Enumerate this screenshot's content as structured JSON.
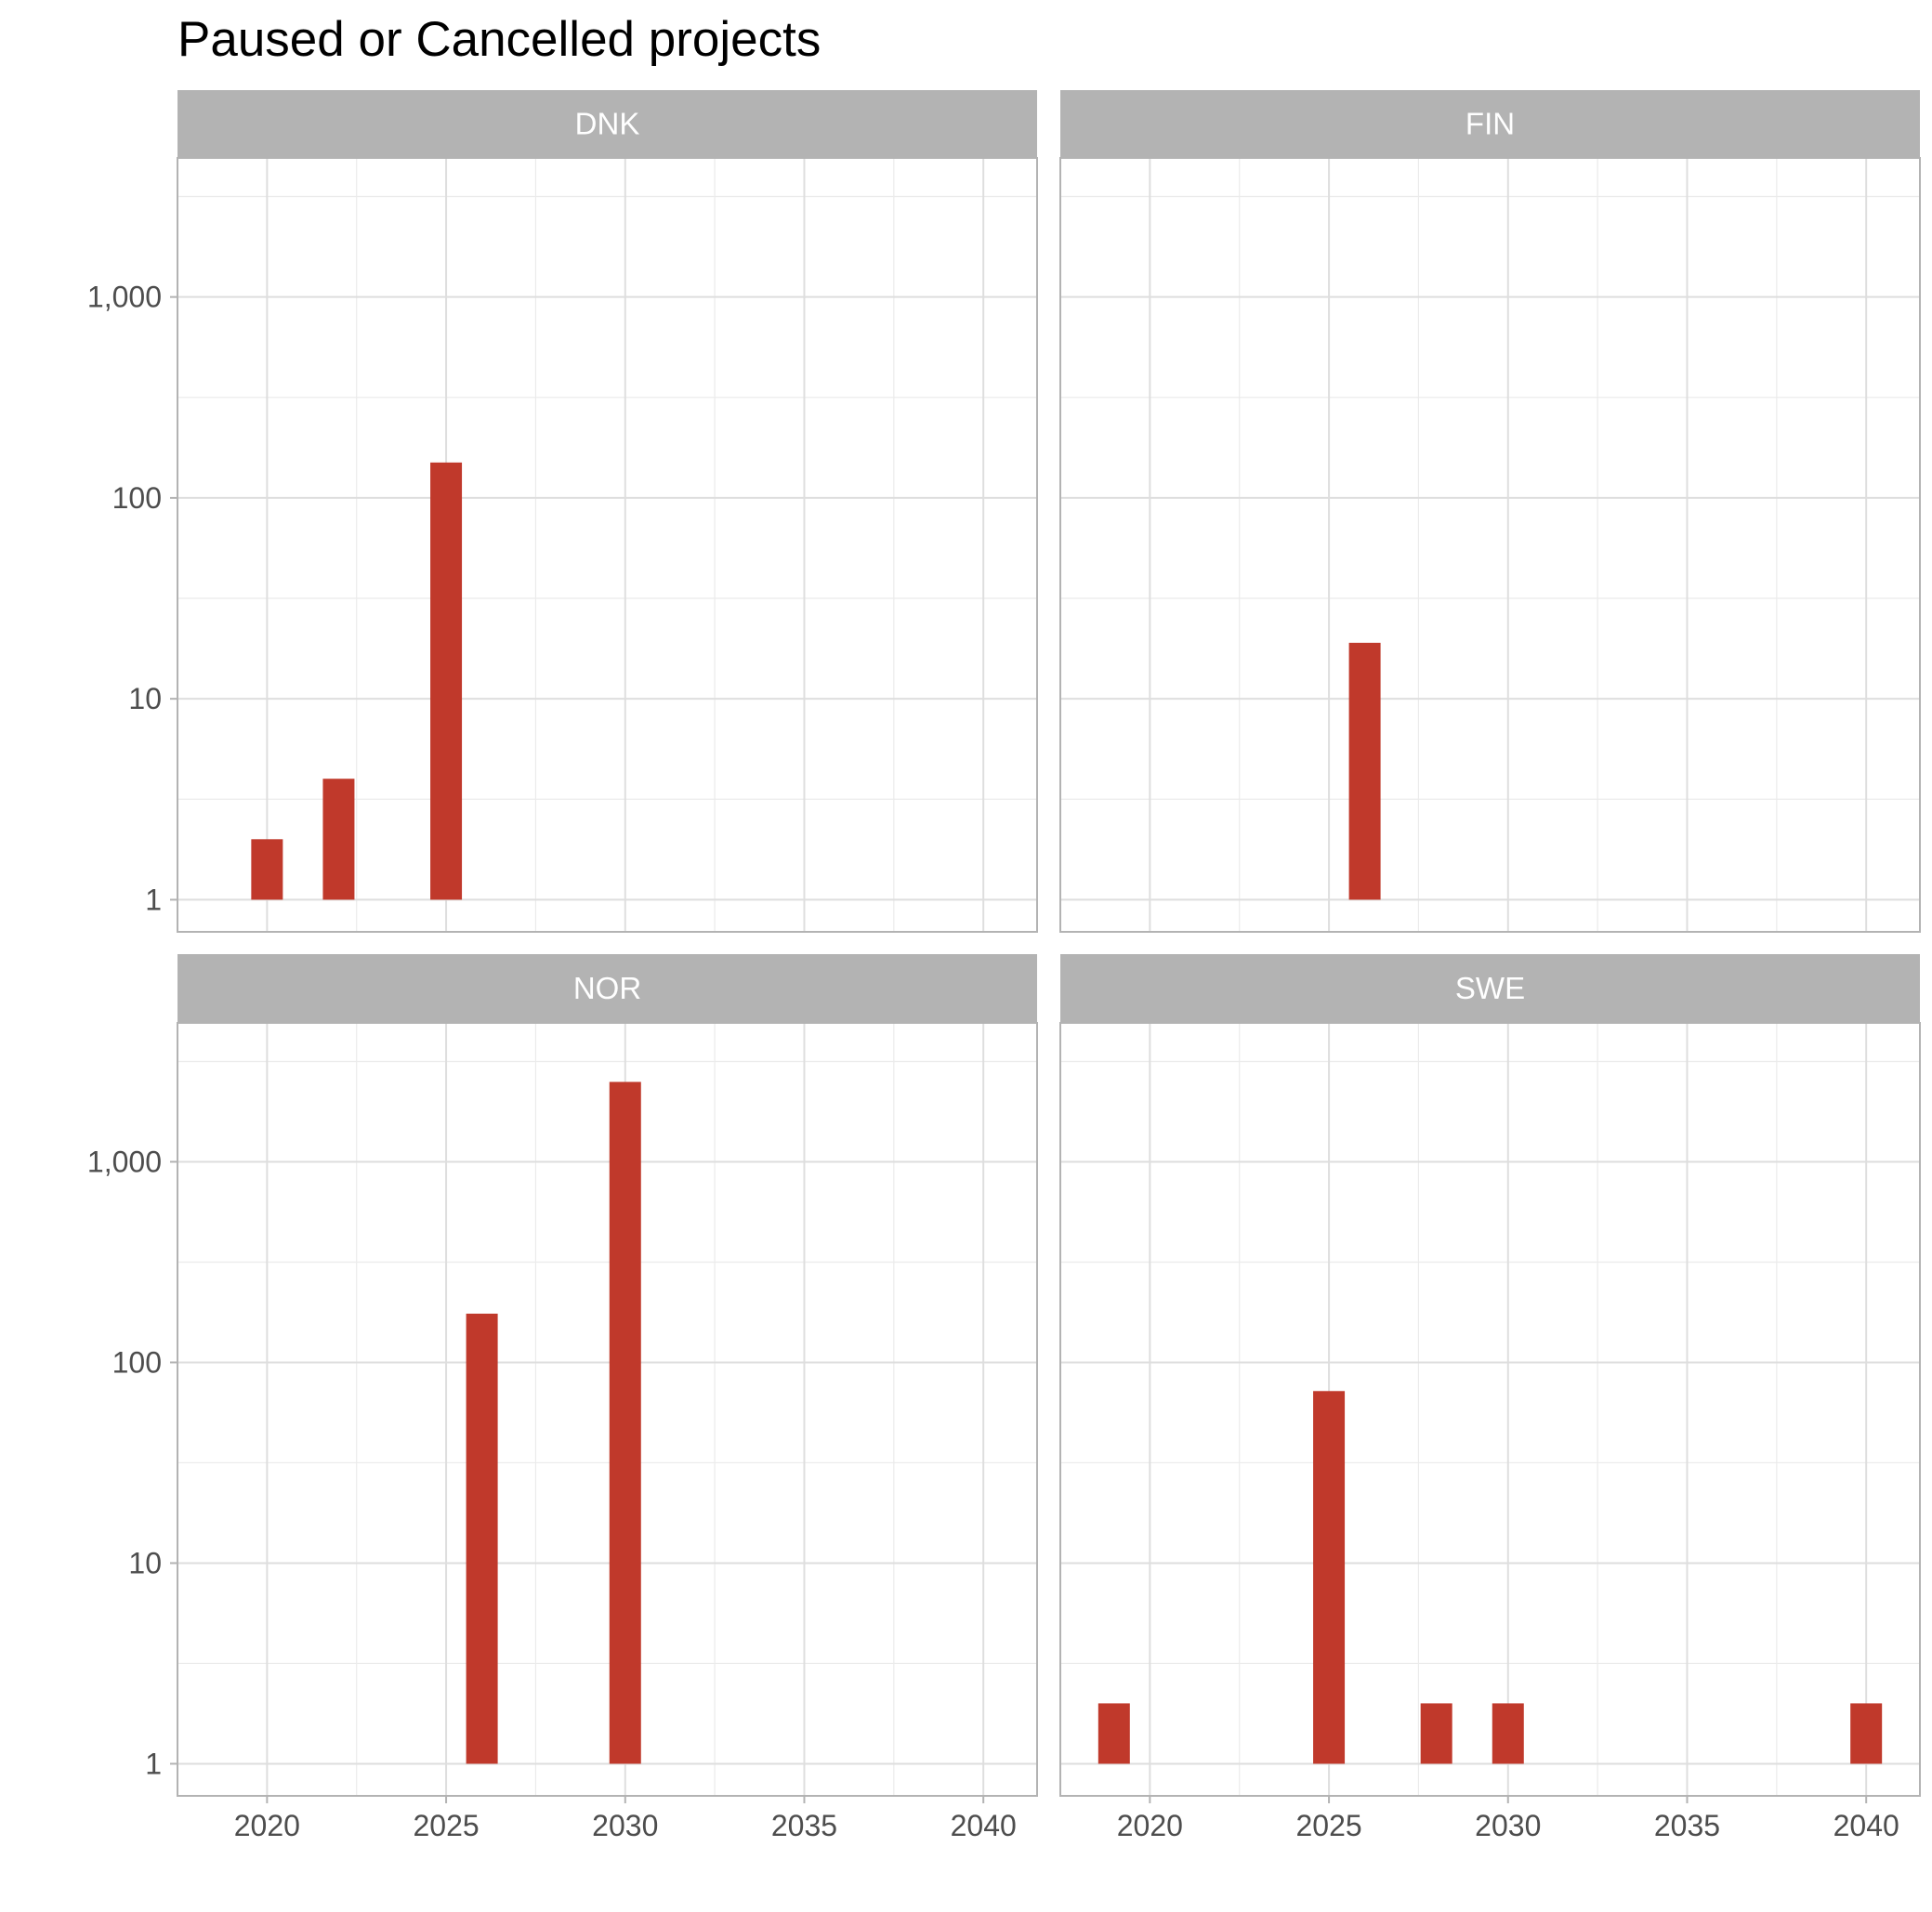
{
  "colors": {
    "bar": "#c0392b",
    "strip": "#b3b3b3",
    "strip_text": "#ffffff"
  },
  "chart_data": {
    "type": "bar",
    "title": "Paused or Cancelled projects",
    "xlabel": "",
    "ylabel": "",
    "y_scale": "log10",
    "xlim": [
      2017.5,
      2041.5
    ],
    "ylim": [
      1,
      4000
    ],
    "x_ticks": [
      2020,
      2025,
      2030,
      2035,
      2040
    ],
    "x_tick_labels": [
      "2020",
      "2025",
      "2030",
      "2035",
      "2040"
    ],
    "y_ticks": [
      1,
      10,
      100,
      1000
    ],
    "y_tick_labels": [
      "1",
      "10",
      "100",
      "1,000"
    ],
    "grid": true,
    "facets": [
      {
        "name": "DNK",
        "x": [
          2020,
          2022,
          2025
        ],
        "values": [
          2,
          4,
          150
        ]
      },
      {
        "name": "FIN",
        "x": [
          2026
        ],
        "values": [
          19
        ]
      },
      {
        "name": "NOR",
        "x": [
          2026,
          2030
        ],
        "values": [
          175,
          2500
        ]
      },
      {
        "name": "SWE",
        "x": [
          2019,
          2025,
          2028,
          2030,
          2040
        ],
        "values": [
          2,
          72,
          2,
          2,
          2
        ]
      }
    ]
  }
}
